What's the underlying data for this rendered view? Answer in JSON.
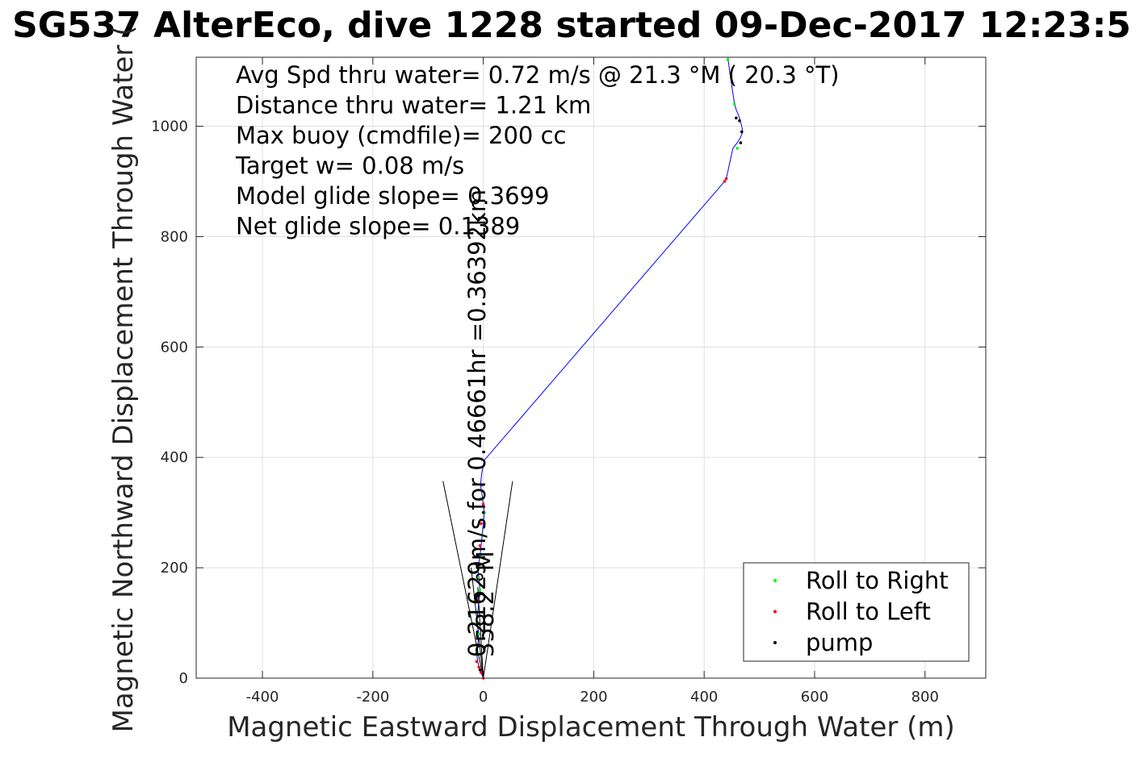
{
  "chart_data": {
    "type": "line",
    "title": "SG537 AlterEco, dive 1228 started 09-Dec-2017 12:23:5",
    "xlabel": "Magnetic Eastward Displacement Through Water (m)",
    "ylabel": "Magnetic Northward Displacement Through Water (",
    "xlim": [
      -520,
      910
    ],
    "ylim": [
      0,
      1125
    ],
    "xticks": [
      -400,
      -200,
      0,
      200,
      400,
      600,
      800
    ],
    "xtick_labels": [
      "-400",
      "-200",
      "0",
      "200",
      "400",
      "600",
      "800"
    ],
    "yticks": [
      0,
      200,
      400,
      600,
      800,
      1000
    ],
    "ytick_labels": [
      "0",
      "200",
      "400",
      "600",
      "800",
      "1000"
    ],
    "grid": true,
    "annotations": [
      "Avg Spd thru water=  0.72 m/s @  21.3 °M ( 20.3 °T)",
      "Distance thru water=  1.21 km",
      "Max buoy (cmdfile)= 200 cc",
      "Target w= 0.08 m/s",
      "Model glide slope= 0.3699",
      "Net glide slope= 0.1389"
    ],
    "current_labels": [
      "0.21629m/s for 0.46661hr =0.36392km",
      "358.2 °M"
    ],
    "fan_lines": [
      {
        "x": [
          0,
          -73
        ],
        "y": [
          0,
          357
        ]
      },
      {
        "x": [
          0,
          53
        ],
        "y": [
          0,
          357
        ]
      },
      {
        "x": [
          0,
          -22
        ],
        "y": [
          0,
          200
        ]
      },
      {
        "x": [
          0,
          -10
        ],
        "y": [
          0,
          165
        ]
      }
    ],
    "track": {
      "name": "track",
      "color": "#0000ff",
      "x": [
        0,
        -4,
        -8,
        -10,
        -12,
        -10,
        -8,
        -12,
        -10,
        -8,
        -6,
        -8,
        -10,
        -6,
        -4,
        -2,
        0,
        2,
        0,
        -2,
        -5,
        -3,
        2,
        437,
        440,
        452,
        460,
        466,
        470,
        468,
        464,
        458,
        455,
        452,
        449,
        446,
        443
      ],
      "y": [
        0,
        10,
        20,
        30,
        45,
        60,
        80,
        100,
        120,
        140,
        160,
        180,
        200,
        220,
        240,
        260,
        280,
        300,
        315,
        330,
        350,
        370,
        395,
        900,
        905,
        960,
        970,
        980,
        990,
        1000,
        1015,
        1030,
        1040,
        1060,
        1080,
        1100,
        1125
      ]
    },
    "series": [
      {
        "name": "Roll to Right",
        "color": "#00ff00",
        "x": [
          -10,
          -8,
          -12,
          -10,
          -6,
          -8,
          -10,
          -6,
          -2,
          2,
          -5,
          460,
          455,
          449,
          443
        ],
        "y": [
          45,
          80,
          100,
          120,
          160,
          180,
          200,
          220,
          260,
          300,
          325,
          960,
          1040,
          1090,
          1120
        ]
      },
      {
        "name": "Roll to Left",
        "color": "#ff0000",
        "x": [
          0,
          -4,
          -8,
          -12,
          -10,
          -8,
          -6,
          -4,
          0,
          -2,
          437,
          440
        ],
        "y": [
          0,
          10,
          20,
          30,
          60,
          140,
          240,
          280,
          315,
          350,
          900,
          905
        ]
      },
      {
        "name": "pump",
        "color": "#000000",
        "x": [
          -6,
          -10,
          -8,
          0,
          466,
          468,
          464,
          458
        ],
        "y": [
          15,
          100,
          150,
          300,
          970,
          990,
          1010,
          1015
        ]
      }
    ],
    "legend_position": "bottom-right"
  }
}
